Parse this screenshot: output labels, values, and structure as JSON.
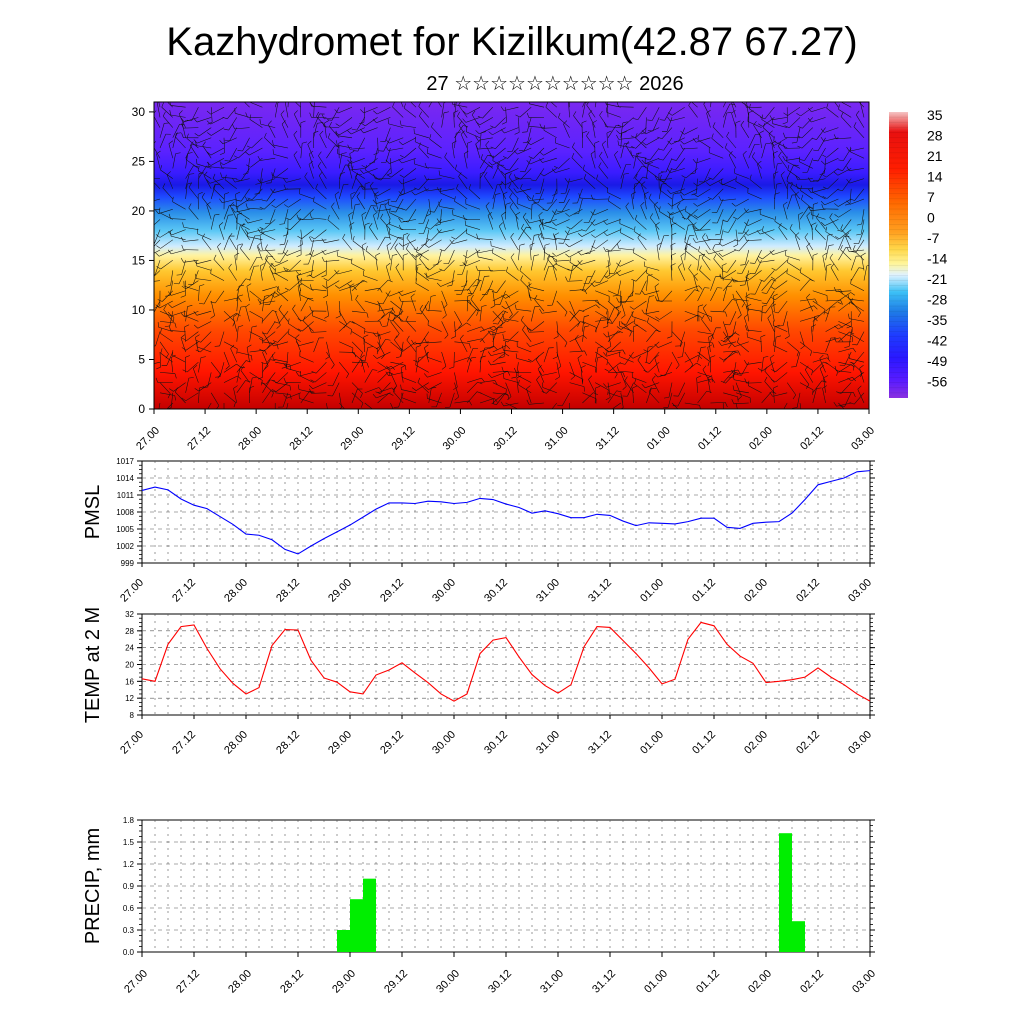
{
  "title": "Kazhydromet for Kizilkum(42.87 67.27)",
  "subtitle": "27 ☆☆☆☆☆☆☆☆☆☆ 2026",
  "colors": {
    "pmsl_line": "#0000ff",
    "temp_line": "#ff0000",
    "precip_bar": "#00ee00",
    "grid": "#555555"
  },
  "time_ticks": [
    "27.00",
    "27.12",
    "28.00",
    "28.12",
    "29.00",
    "29.12",
    "30.00",
    "30.12",
    "31.00",
    "31.12",
    "01.00",
    "01.12",
    "02.00",
    "02.12",
    "03.00"
  ],
  "chart_data": [
    {
      "type": "heatmap",
      "panel": "profile",
      "ylabel": "",
      "ylim": [
        0,
        31
      ],
      "yticks": [
        0,
        5,
        10,
        15,
        20,
        25,
        30
      ],
      "x": [
        "27.00",
        "27.12",
        "28.00",
        "28.12",
        "29.00",
        "29.12",
        "30.00",
        "30.12",
        "31.00",
        "31.12",
        "01.00",
        "01.12",
        "02.00",
        "02.12",
        "03.00"
      ],
      "colorbar_labels": [
        "35",
        "28",
        "21",
        "14",
        "7",
        "0",
        "-7",
        "-14",
        "-21",
        "-28",
        "-35",
        "-42",
        "-49",
        "-56"
      ],
      "colorbar_stops": [
        "#f3b9b9",
        "#e01010",
        "#ff1a00",
        "#ff5a00",
        "#ff9a10",
        "#ffcc33",
        "#fff07a",
        "#d6f0ff",
        "#29b6f6",
        "#1e88e5",
        "#1e3cff",
        "#2a1bff",
        "#5a1cff",
        "#8a2be2"
      ],
      "wind_barbs": true
    },
    {
      "type": "line",
      "panel": "pmsl",
      "ylabel": "PMSL",
      "ylim": [
        999,
        1017
      ],
      "yticks": [
        999,
        1002,
        1005,
        1008,
        1011,
        1014,
        1017
      ],
      "x": [
        "27.00",
        "27.03",
        "27.06",
        "27.09",
        "27.12",
        "27.15",
        "27.18",
        "27.21",
        "28.00",
        "28.03",
        "28.06",
        "28.09",
        "28.12",
        "28.15",
        "28.18",
        "28.21",
        "29.00",
        "29.03",
        "29.06",
        "29.09",
        "29.12",
        "29.15",
        "29.18",
        "29.21",
        "30.00",
        "30.03",
        "30.06",
        "30.09",
        "30.12",
        "30.15",
        "30.18",
        "30.21",
        "31.00",
        "31.03",
        "31.06",
        "31.09",
        "31.12",
        "31.15",
        "31.18",
        "31.21",
        "01.00",
        "01.03",
        "01.06",
        "01.09",
        "01.12",
        "01.15",
        "01.18",
        "01.21",
        "02.00",
        "02.03",
        "02.06",
        "02.09",
        "02.12",
        "02.15",
        "02.18",
        "02.21",
        "03.00"
      ],
      "series": [
        {
          "values": [
            1011.8,
            1012.4,
            1011.9,
            1010.3,
            1009.2,
            1008.6,
            1007.2,
            1005.8,
            1004.1,
            1003.9,
            1003.1,
            1001.4,
            1000.6,
            1002.0,
            1003.3,
            1004.5,
            1005.7,
            1007.1,
            1008.5,
            1009.6,
            1009.6,
            1009.5,
            1009.9,
            1009.8,
            1009.5,
            1009.7,
            1010.4,
            1010.2,
            1009.4,
            1008.8,
            1007.8,
            1008.2,
            1007.7,
            1007.0,
            1007.0,
            1007.6,
            1007.4,
            1006.4,
            1005.6,
            1006.1,
            1006.0,
            1005.9,
            1006.3,
            1006.9,
            1006.9,
            1005.3,
            1005.1,
            1006.0,
            1006.2,
            1006.3,
            1007.8,
            1010.2,
            1012.8,
            1013.4,
            1014.0,
            1015.1,
            1015.3
          ]
        }
      ]
    },
    {
      "type": "line",
      "panel": "temp",
      "ylabel": "TEMP at 2 M",
      "ylim": [
        8,
        32
      ],
      "yticks": [
        8,
        12,
        16,
        20,
        24,
        28,
        32
      ],
      "x": [
        "27.00",
        "27.03",
        "27.06",
        "27.09",
        "27.12",
        "27.15",
        "27.18",
        "27.21",
        "28.00",
        "28.03",
        "28.06",
        "28.09",
        "28.12",
        "28.15",
        "28.18",
        "28.21",
        "29.00",
        "29.03",
        "29.06",
        "29.09",
        "29.12",
        "29.15",
        "29.18",
        "29.21",
        "30.00",
        "30.03",
        "30.06",
        "30.09",
        "30.12",
        "30.15",
        "30.18",
        "30.21",
        "31.00",
        "31.03",
        "31.06",
        "31.09",
        "31.12",
        "31.15",
        "31.18",
        "31.21",
        "01.00",
        "01.03",
        "01.06",
        "01.09",
        "01.12",
        "01.15",
        "01.18",
        "01.21",
        "02.00",
        "02.03",
        "02.06",
        "02.09",
        "02.12",
        "02.15",
        "02.18",
        "02.21",
        "03.00"
      ],
      "series": [
        {
          "values": [
            16.6,
            16.0,
            24.8,
            29.0,
            29.4,
            23.8,
            19.0,
            15.5,
            13.0,
            14.5,
            24.5,
            28.3,
            28.2,
            21.0,
            16.8,
            15.8,
            13.5,
            13.0,
            17.5,
            18.7,
            20.4,
            18.0,
            15.7,
            13.0,
            11.3,
            13.0,
            22.6,
            25.8,
            26.4,
            21.8,
            17.6,
            15.0,
            13.2,
            15.2,
            24.2,
            29.0,
            28.8,
            25.7,
            22.6,
            19.2,
            15.4,
            16.5,
            26.0,
            30.0,
            29.2,
            24.8,
            22.0,
            20.3,
            15.7,
            16.0,
            16.4,
            17.0,
            19.2,
            17.0,
            15.2,
            13.0,
            11.3
          ]
        }
      ]
    },
    {
      "type": "bar",
      "panel": "precip",
      "ylabel": "PRECIP, mm",
      "ylim": [
        0,
        1.8
      ],
      "yticks": [
        "0.0",
        "0.3",
        "0.6",
        "0.9",
        "1.2",
        "1.5",
        "1.8"
      ],
      "categories": [
        "29.00",
        "29.03",
        "29.06",
        "02.06",
        "02.09"
      ],
      "values": [
        0.3,
        0.72,
        1.0,
        1.62,
        0.42
      ]
    }
  ]
}
